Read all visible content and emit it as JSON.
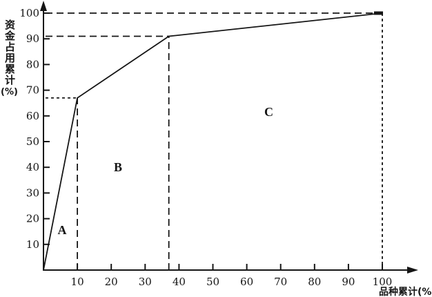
{
  "figure": {
    "background": "#ffffff",
    "ink_color": "#151515"
  },
  "chart_data": {
    "type": "line",
    "title": "",
    "xlabel": "品种累计(%)",
    "ylabel": "资金占用累计",
    "ylabel_unit": "(%)",
    "xlim": [
      0,
      100
    ],
    "ylim": [
      0,
      100
    ],
    "grid": false,
    "legend": null,
    "x_ticks": [
      10,
      20,
      30,
      40,
      50,
      60,
      70,
      80,
      90,
      100
    ],
    "y_ticks": [
      10,
      20,
      30,
      40,
      50,
      60,
      70,
      80,
      90,
      100
    ],
    "series": [
      {
        "x": [
          0,
          10,
          37,
          100
        ],
        "y": [
          0,
          67,
          91,
          100
        ]
      }
    ],
    "end_marker": {
      "x": 100,
      "y": 100
    },
    "guide_lines": [
      {
        "orientation": "horizontal",
        "value": 100,
        "from": 0,
        "to": 100,
        "style": "dashed"
      },
      {
        "orientation": "horizontal",
        "value": 91,
        "from": 0,
        "to": 37,
        "style": "dashed"
      },
      {
        "orientation": "horizontal",
        "value": 67,
        "from": 0,
        "to": 10,
        "style": "dotted"
      },
      {
        "orientation": "vertical",
        "value": 10,
        "from": 0,
        "to": 67,
        "style": "dashed"
      },
      {
        "orientation": "vertical",
        "value": 37,
        "from": 0,
        "to": 91,
        "style": "dashed"
      },
      {
        "orientation": "vertical",
        "value": 100,
        "from": 0,
        "to": 100,
        "style": "dotted"
      }
    ],
    "region_labels": [
      {
        "text": "A",
        "x": 5.5,
        "y": 14
      },
      {
        "text": "B",
        "x": 22,
        "y": 38.5
      },
      {
        "text": "C",
        "x": 66.5,
        "y": 60
      }
    ]
  }
}
